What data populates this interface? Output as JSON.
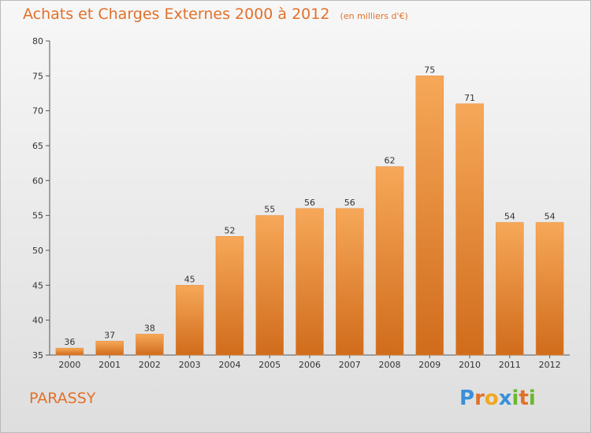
{
  "header": {
    "title": "Achats et Charges Externes 2000 à 2012",
    "subtitle": "(en milliers d'€)"
  },
  "footer": {
    "town": "PARASSY",
    "logo_text": "Proxiti",
    "logo_colors": [
      "#3a8fd8",
      "#e2702a",
      "#f0a820",
      "#3a8fd8",
      "#6ab82e",
      "#e2702a",
      "#6ab82e"
    ]
  },
  "colors": {
    "accent": "#e2702a",
    "bar_top": "#f6a858",
    "bar_bottom": "#d06c1c"
  },
  "chart_data": {
    "type": "bar",
    "categories": [
      "2000",
      "2001",
      "2002",
      "2003",
      "2004",
      "2005",
      "2006",
      "2007",
      "2008",
      "2009",
      "2010",
      "2011",
      "2012"
    ],
    "values": [
      36,
      37,
      38,
      45,
      52,
      55,
      56,
      56,
      62,
      75,
      71,
      54,
      54
    ],
    "data_labels": [
      "36",
      "37",
      "38",
      "45",
      "52",
      "55",
      "56",
      "56",
      "62",
      "75",
      "71",
      "54",
      "54"
    ],
    "ylim": [
      35,
      80
    ],
    "yticks": [
      "35",
      "40",
      "45",
      "50",
      "55",
      "60",
      "65",
      "70",
      "75",
      "80"
    ],
    "grid": false
  }
}
